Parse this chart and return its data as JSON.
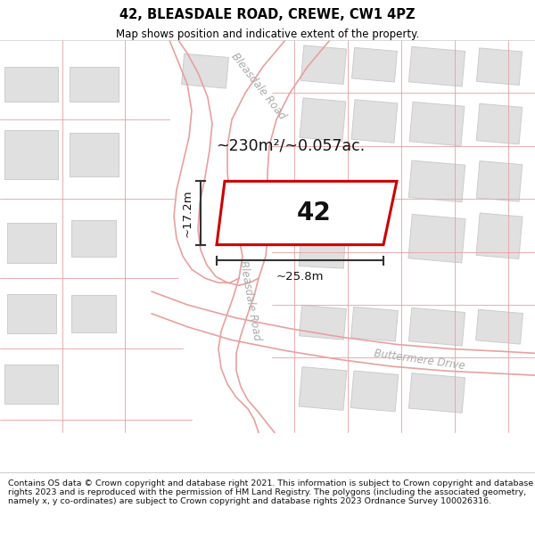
{
  "title": "42, BLEASDALE ROAD, CREWE, CW1 4PZ",
  "subtitle": "Map shows position and indicative extent of the property.",
  "footer": "Contains OS data © Crown copyright and database right 2021. This information is subject to Crown copyright and database rights 2023 and is reproduced with the permission of HM Land Registry. The polygons (including the associated geometry, namely x, y co-ordinates) are subject to Crown copyright and database rights 2023 Ordnance Survey 100026316.",
  "area_label": "~230m²/~0.057ac.",
  "property_number": "42",
  "dim_width": "~25.8m",
  "dim_height": "~17.2m",
  "map_bg": "#f7f7f7",
  "road_line_color": "#e8a0a0",
  "building_color": "#e0e0e0",
  "building_edge": "#cccccc",
  "plot_fill": "#ffffff",
  "plot_edge": "#cc0000",
  "dim_color": "#333333",
  "title_color": "#000000",
  "road_label_color": "#aaaaaa"
}
